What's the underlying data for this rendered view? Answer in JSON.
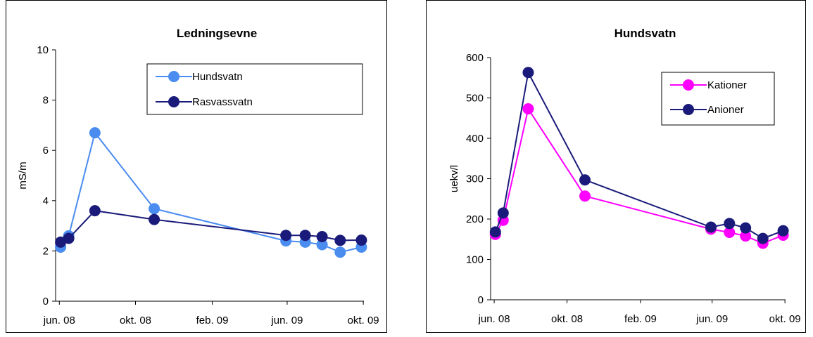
{
  "chart_data": [
    {
      "type": "line",
      "title": "Ledningsevne",
      "xlabel": "",
      "ylabel": "mS/m",
      "ylim": [
        0,
        10
      ],
      "yticks": [
        "0",
        "2",
        "4",
        "6",
        "8",
        "10"
      ],
      "xticks": [
        "jun. 08",
        "okt. 08",
        "feb. 09",
        "jun. 09",
        "okt. 09"
      ],
      "xlim_months": [
        "2008-05-26",
        "2009-10-02"
      ],
      "grid": false,
      "legend_position": "top-right",
      "series": [
        {
          "name": "Hundsvatn",
          "color": "#4a8cf0",
          "points": [
            [
              "2008-06-03",
              2.15
            ],
            [
              "2008-06-16",
              2.6
            ],
            [
              "2008-07-28",
              6.7
            ],
            [
              "2008-10-31",
              3.68
            ],
            [
              "2009-05-30",
              2.4
            ],
            [
              "2009-06-30",
              2.35
            ],
            [
              "2009-07-27",
              2.25
            ],
            [
              "2009-08-25",
              1.95
            ],
            [
              "2009-09-28",
              2.15
            ]
          ]
        },
        {
          "name": "Rasvassvatn",
          "color": "#1a1a7a",
          "points": [
            [
              "2008-06-03",
              2.35
            ],
            [
              "2008-06-16",
              2.5
            ],
            [
              "2008-07-28",
              3.6
            ],
            [
              "2008-10-31",
              3.25
            ],
            [
              "2009-05-30",
              2.62
            ],
            [
              "2009-06-30",
              2.62
            ],
            [
              "2009-07-27",
              2.57
            ],
            [
              "2009-08-25",
              2.42
            ],
            [
              "2009-09-28",
              2.43
            ]
          ]
        }
      ]
    },
    {
      "type": "line",
      "title": "Hundsvatn",
      "xlabel": "",
      "ylabel": "uekv/l",
      "ylim": [
        0,
        600
      ],
      "yticks": [
        "0",
        "100",
        "200",
        "300",
        "400",
        "500",
        "600"
      ],
      "xticks": [
        "jun. 08",
        "okt. 08",
        "feb. 09",
        "jun. 09",
        "okt. 09"
      ],
      "xlim_months": [
        "2008-05-26",
        "2009-10-02"
      ],
      "grid": false,
      "legend_position": "top-right",
      "series": [
        {
          "name": "Kationer",
          "color": "#ff00ff",
          "points": [
            [
              "2008-06-03",
              162
            ],
            [
              "2008-06-16",
              197
            ],
            [
              "2008-07-28",
              473
            ],
            [
              "2008-10-31",
              257
            ],
            [
              "2009-05-30",
              175
            ],
            [
              "2009-06-30",
              167
            ],
            [
              "2009-07-27",
              158
            ],
            [
              "2009-08-25",
              140
            ],
            [
              "2009-09-28",
              160
            ]
          ]
        },
        {
          "name": "Anioner",
          "color": "#1a1a7a",
          "points": [
            [
              "2008-06-03",
              168
            ],
            [
              "2008-06-16",
              215
            ],
            [
              "2008-07-28",
              563
            ],
            [
              "2008-10-31",
              297
            ],
            [
              "2009-05-30",
              180
            ],
            [
              "2009-06-30",
              189
            ],
            [
              "2009-07-27",
              178
            ],
            [
              "2009-08-25",
              152
            ],
            [
              "2009-09-28",
              171
            ]
          ]
        }
      ]
    }
  ]
}
